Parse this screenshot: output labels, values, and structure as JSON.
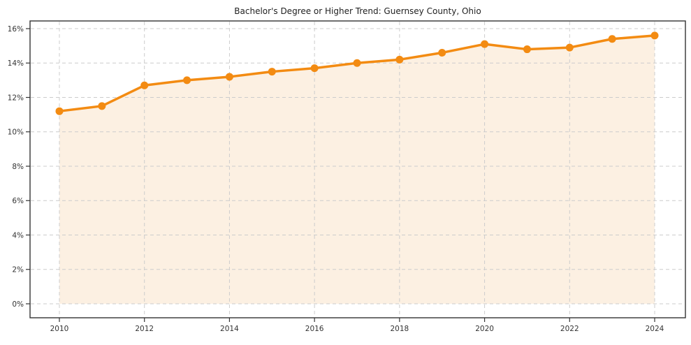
{
  "chart_data": {
    "type": "area",
    "title": "Bachelor's Degree or Higher Trend: Guernsey County, Ohio",
    "x": [
      2010,
      2011,
      2012,
      2013,
      2014,
      2015,
      2016,
      2017,
      2018,
      2019,
      2020,
      2021,
      2022,
      2023,
      2024
    ],
    "series": [
      {
        "name": "Bachelor's Degree or Higher (%)",
        "values": [
          11.2,
          11.5,
          12.7,
          13.0,
          13.2,
          13.5,
          13.7,
          14.0,
          14.2,
          14.6,
          15.1,
          14.8,
          14.9,
          15.4,
          15.6
        ]
      }
    ],
    "xlabel": "",
    "ylabel": "",
    "xlim": [
      2010,
      2024
    ],
    "ylim": [
      0,
      16
    ],
    "xticks": [
      2010,
      2012,
      2014,
      2016,
      2018,
      2020,
      2022,
      2024
    ],
    "yticks": [
      0,
      2,
      4,
      6,
      8,
      10,
      12,
      14,
      16
    ],
    "ytick_suffix": "%",
    "grid": "dashed",
    "legend_position": "none",
    "colors": {
      "line": "#F38B12",
      "marker": "#F38B12",
      "fill": "#FCF0E2",
      "grid": "#CCCCCC",
      "frame": "#333333",
      "tick_text": "#333333",
      "title_text": "#1F1F1F",
      "background": "#FFFFFF"
    }
  }
}
